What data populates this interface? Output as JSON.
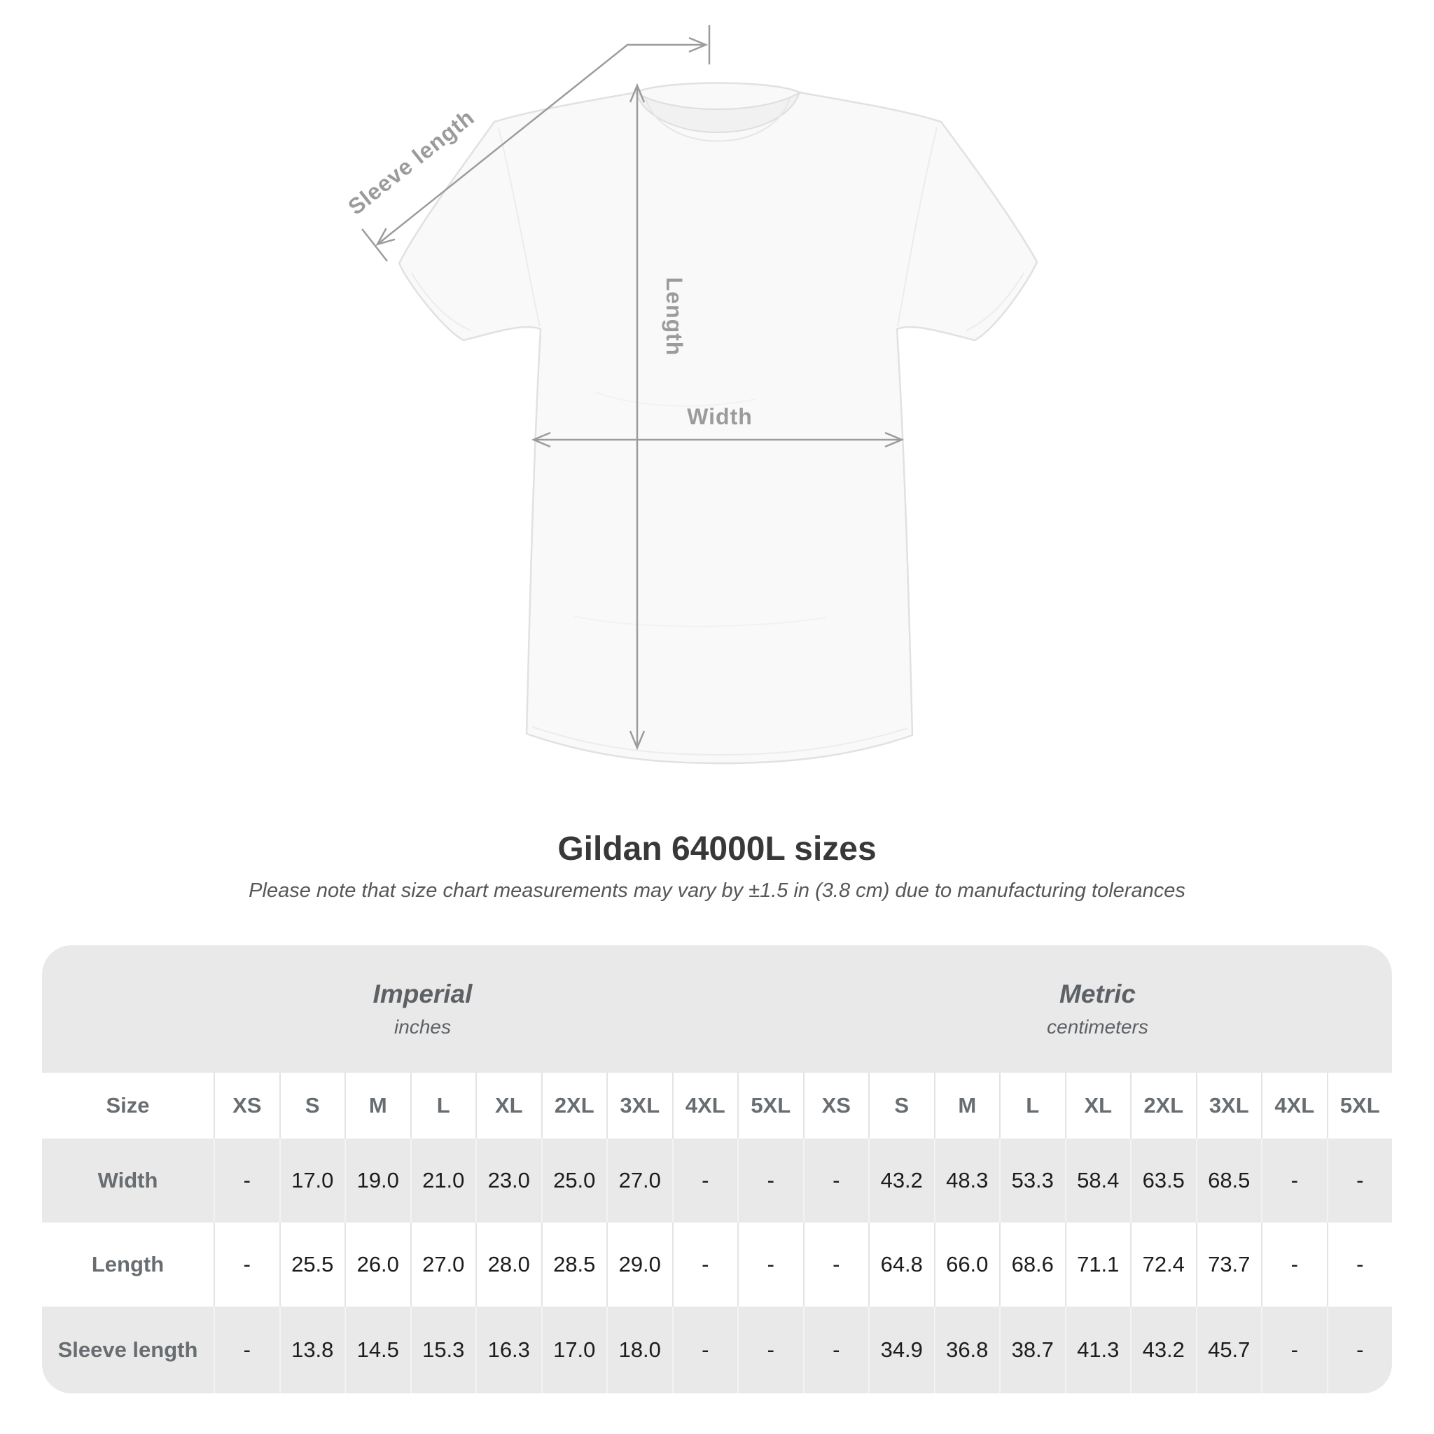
{
  "diagram": {
    "labels": {
      "sleeve_length": "Sleeve length",
      "length": "Length",
      "width": "Width"
    },
    "line_color": "#9c9c9c",
    "label_color": "#9b9b9b"
  },
  "title": "Gildan 64000L sizes",
  "subtitle": "Please note that size chart measurements may vary by ±1.5 in (3.8 cm) due to manufacturing tolerances",
  "chart_data": {
    "type": "table",
    "title": "Gildan 64000L sizes",
    "unit_groups": [
      {
        "name": "Imperial",
        "unit": "inches"
      },
      {
        "name": "Metric",
        "unit": "centimeters"
      }
    ],
    "corner_label": "Size",
    "sizes": [
      "XS",
      "S",
      "M",
      "L",
      "XL",
      "2XL",
      "3XL",
      "4XL",
      "5XL"
    ],
    "rows": [
      {
        "label": "Width",
        "imperial": [
          "-",
          "17.0",
          "19.0",
          "21.0",
          "23.0",
          "25.0",
          "27.0",
          "-",
          "-"
        ],
        "metric": [
          "-",
          "43.2",
          "48.3",
          "53.3",
          "58.4",
          "63.5",
          "68.5",
          "-",
          "-"
        ]
      },
      {
        "label": "Length",
        "imperial": [
          "-",
          "25.5",
          "26.0",
          "27.0",
          "28.0",
          "28.5",
          "29.0",
          "-",
          "-"
        ],
        "metric": [
          "-",
          "64.8",
          "66.0",
          "68.6",
          "71.1",
          "72.4",
          "73.7",
          "-",
          "-"
        ]
      },
      {
        "label": "Sleeve length",
        "imperial": [
          "-",
          "13.8",
          "14.5",
          "15.3",
          "16.3",
          "17.0",
          "18.0",
          "-",
          "-"
        ],
        "metric": [
          "-",
          "34.9",
          "36.8",
          "38.7",
          "41.3",
          "43.2",
          "45.7",
          "-",
          "-"
        ]
      }
    ]
  },
  "colors": {
    "band_gray": "#e9e9e9",
    "row_gray": "#e9e9e9",
    "row_white": "#ffffff",
    "header_text": "#686d71",
    "value_text": "#1d1d1d",
    "title_text": "#383838",
    "subtitle_text": "#575757"
  }
}
